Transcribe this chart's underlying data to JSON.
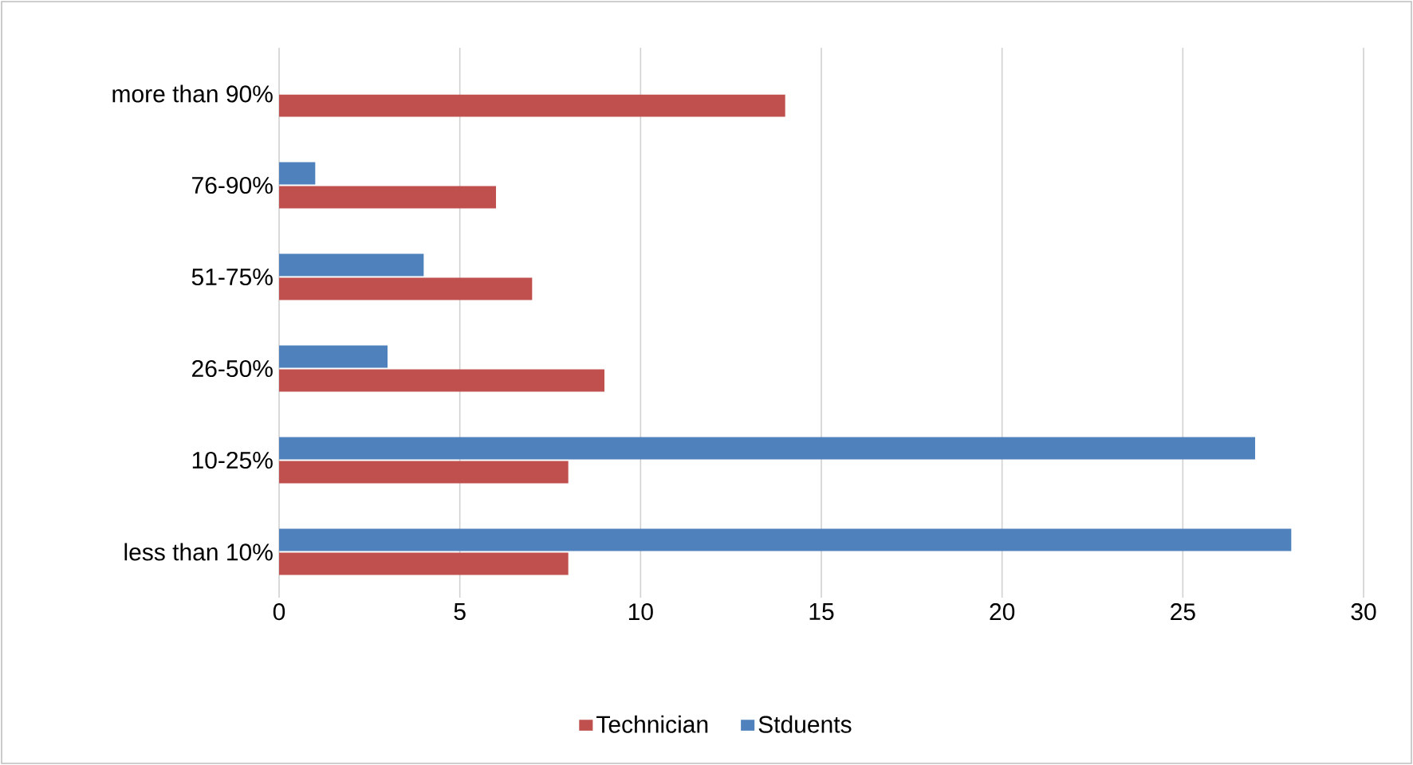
{
  "chart_data": {
    "type": "bar",
    "orientation": "horizontal",
    "categories": [
      "more than 90%",
      "76-90%",
      "51-75%",
      "26-50%",
      "10-25%",
      "less than 10%"
    ],
    "series": [
      {
        "name": "Technician",
        "color": "#c0504d",
        "values": [
          14,
          6,
          7,
          9,
          8,
          8
        ]
      },
      {
        "name": "Stduents",
        "color": "#4f81bd",
        "values": [
          0,
          1,
          4,
          3,
          27,
          28
        ]
      }
    ],
    "xlim": [
      0,
      30
    ],
    "xticks": [
      0,
      5,
      10,
      15,
      20,
      25,
      30
    ],
    "grid": "x",
    "legend": "bottom"
  }
}
